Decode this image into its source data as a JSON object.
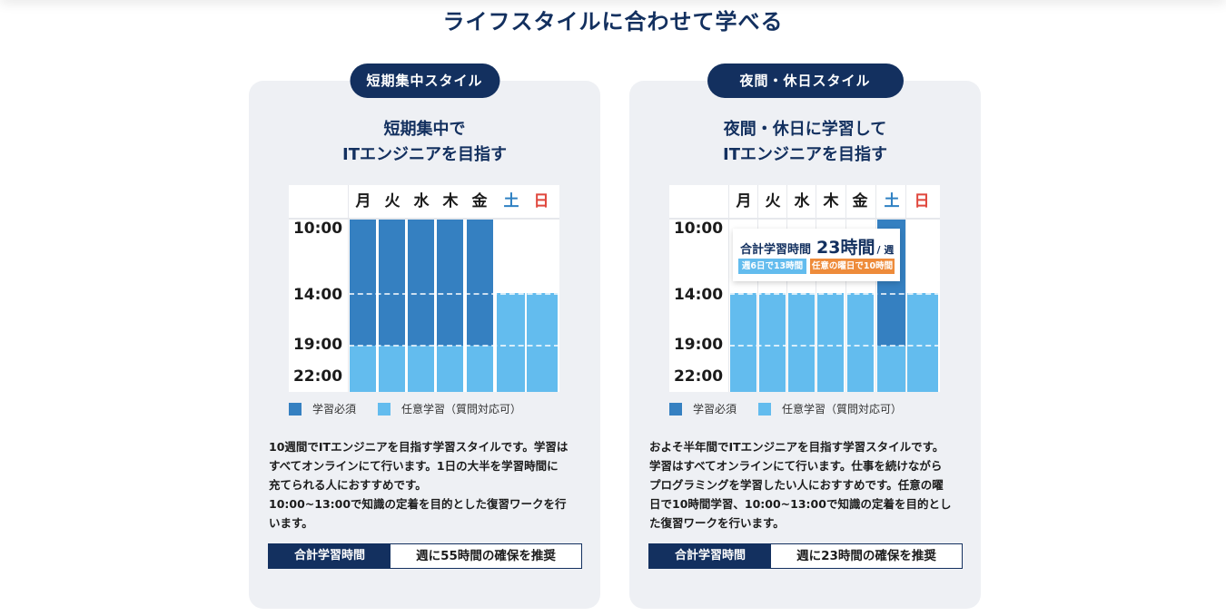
{
  "page_title": "ライフスタイルに合わせて学べる",
  "colors": {
    "navy": "#13305f",
    "required": "#3580c1",
    "optional": "#63bcee",
    "saturday": "#2f81c3",
    "sunday": "#e0473d",
    "orange_tag": "#ee8b3a",
    "card_bg": "#eef0f4"
  },
  "days": [
    "月",
    "火",
    "水",
    "木",
    "金",
    "土",
    "日"
  ],
  "times": [
    "10:00",
    "14:00",
    "19:00",
    "22:00"
  ],
  "legend": {
    "required": "学習必須",
    "optional": "任意学習（質問対応可）"
  },
  "total_label": "合計学習時間",
  "cards": [
    {
      "pill": "短期集中スタイル",
      "heading_line1": "短期集中で",
      "heading_line2": "ITエンジニアを目指す",
      "description": [
        "10週間でITエンジニアを目指す学習スタイルです。学習は",
        "すべてオンラインにて行います。1日の大半を学習時間に",
        "充てられる人におすすめです。",
        "10:00~13:00で知識の定着を目的とした復習ワークを行",
        "います。"
      ],
      "total_value": "週に55時間の確保を推奨"
    },
    {
      "pill": "夜間・休日スタイル",
      "heading_line1": "夜間・休日に学習して",
      "heading_line2": "ITエンジニアを目指す",
      "description": [
        "およそ半年間でITエンジニアを目指す学習スタイルです。",
        "学習はすべてオンラインにて行います。仕事を続けながら",
        "プログラミングを学習したい人におすすめです。任意の曜",
        "日で10時間学習、10:00~13:00で知識の定着を目的とし",
        "た復習ワークを行います。"
      ],
      "total_value": "週に23時間の確保を推奨",
      "popup": {
        "title": "合計学習時間",
        "hours": "23時間",
        "unit": "/ 週",
        "tag_left": "週6日で13時間",
        "tag_right": "任意の曜日で10時間"
      }
    }
  ]
}
